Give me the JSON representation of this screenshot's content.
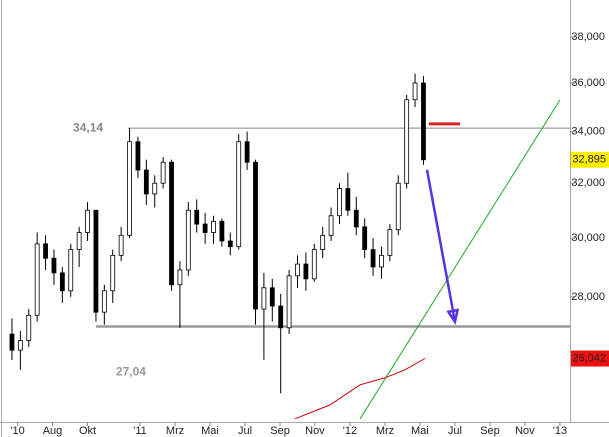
{
  "chart_data": {
    "type": "candlestick",
    "log_y": true,
    "xlim": [
      2010.333,
      2013.048
    ],
    "ylim": [
      24170,
      39690
    ],
    "yticks": [
      {
        "value": 28000,
        "label": "28,000"
      },
      {
        "value": 30000,
        "label": "30,000"
      },
      {
        "value": 32000,
        "label": "32,000"
      },
      {
        "value": 34000,
        "label": "34,000"
      },
      {
        "value": 36000,
        "label": "36,000"
      },
      {
        "value": 38000,
        "label": "38,000"
      }
    ],
    "xticks": [
      {
        "value": 2010.417,
        "label": "'10"
      },
      {
        "value": 2010.583,
        "label": "Aug"
      },
      {
        "value": 2010.75,
        "label": "Okt"
      },
      {
        "value": 2011.0,
        "label": "'11"
      },
      {
        "value": 2011.167,
        "label": "Mrz"
      },
      {
        "value": 2011.333,
        "label": "Mai"
      },
      {
        "value": 2011.5,
        "label": "Jul"
      },
      {
        "value": 2011.667,
        "label": "Sep"
      },
      {
        "value": 2011.833,
        "label": "Nov"
      },
      {
        "value": 2012.0,
        "label": "'12"
      },
      {
        "value": 2012.167,
        "label": "Mrz"
      },
      {
        "value": 2012.333,
        "label": "Mai"
      },
      {
        "value": 2012.5,
        "label": "Jul"
      },
      {
        "value": 2012.667,
        "label": "Sep"
      },
      {
        "value": 2012.833,
        "label": "Nov"
      },
      {
        "value": 2013.0,
        "label": "'13"
      }
    ],
    "up_color": "#ffffff",
    "down_color": "#000000",
    "x": [
      2010.39,
      2010.43,
      2010.47,
      2010.51,
      2010.55,
      2010.59,
      2010.63,
      2010.67,
      2010.71,
      2010.75,
      2010.79,
      2010.83,
      2010.87,
      2010.91,
      2010.95,
      2010.99,
      2011.03,
      2011.07,
      2011.11,
      2011.15,
      2011.19,
      2011.23,
      2011.27,
      2011.31,
      2011.35,
      2011.39,
      2011.43,
      2011.47,
      2011.51,
      2011.55,
      2011.59,
      2011.63,
      2011.67,
      2011.71,
      2011.75,
      2011.79,
      2011.83,
      2011.87,
      2011.91,
      2011.95,
      2011.99,
      2012.03,
      2012.07,
      2012.11,
      2012.15,
      2012.19,
      2012.23,
      2012.27,
      2012.31,
      2012.35
    ],
    "open": [
      26800,
      26300,
      26600,
      27400,
      29800,
      29300,
      28800,
      28200,
      29600,
      30200,
      31000,
      27500,
      28200,
      29400,
      30100,
      33600,
      32500,
      31600,
      32000,
      32800,
      28400,
      28900,
      31000,
      30500,
      30200,
      30600,
      29900,
      29700,
      33600,
      32800,
      27600,
      28300,
      27700,
      27000,
      28700,
      29100,
      28600,
      29600,
      30100,
      30800,
      31800,
      31000,
      30400,
      29600,
      29000,
      29400,
      30300,
      32000,
      35300,
      36000
    ],
    "high": [
      27300,
      26900,
      27600,
      30200,
      30100,
      29600,
      29000,
      29800,
      30400,
      31300,
      31000,
      28400,
      29600,
      30400,
      34140,
      33800,
      32900,
      32300,
      33000,
      32900,
      29200,
      31300,
      31400,
      30900,
      30800,
      30700,
      30200,
      33900,
      34000,
      32900,
      28800,
      28600,
      28100,
      28900,
      29400,
      29500,
      29800,
      30400,
      31100,
      32000,
      32400,
      31500,
      30700,
      30000,
      29700,
      30500,
      32300,
      35500,
      36400,
      36300
    ],
    "low": [
      26000,
      25700,
      26400,
      27200,
      28900,
      28400,
      27800,
      28000,
      29000,
      29900,
      27200,
      27100,
      27800,
      29200,
      30000,
      32200,
      31200,
      31100,
      31800,
      28200,
      27000,
      28700,
      30200,
      29800,
      29800,
      29700,
      29400,
      29600,
      32500,
      27100,
      26000,
      27200,
      25000,
      26800,
      28300,
      28200,
      28500,
      29300,
      29900,
      30500,
      30800,
      30100,
      29300,
      28700,
      28600,
      29200,
      30100,
      31800,
      35000,
      32700
    ],
    "close": [
      26300,
      26600,
      27400,
      29800,
      29300,
      28800,
      28200,
      29600,
      30200,
      31000,
      27500,
      28200,
      29400,
      30100,
      33600,
      32500,
      31600,
      32000,
      32800,
      28400,
      28900,
      31000,
      30500,
      30200,
      30600,
      29900,
      29700,
      33600,
      32800,
      27600,
      28300,
      27700,
      27000,
      28700,
      29100,
      28600,
      29600,
      30100,
      30800,
      31800,
      31000,
      30400,
      29600,
      29000,
      29400,
      30300,
      32000,
      35300,
      36000,
      32895
    ],
    "close_label": "32,895",
    "levels": [
      {
        "value": 34140,
        "label": "34,14",
        "x": 2010.943,
        "color": "#888888"
      },
      {
        "value": 27040,
        "label": "27,04",
        "x": 2010.79,
        "color": "#999999"
      }
    ],
    "moving_average": {
      "color": "#cc0000",
      "x": [
        2011.738,
        2011.905,
        2012.048,
        2012.167,
        2012.262,
        2012.357
      ],
      "values": [
        24260,
        24660,
        25250,
        25460,
        25700,
        26042
      ],
      "last_label": "26,042"
    },
    "trendline": {
      "color": "#22aa22",
      "x": [
        2012.048,
        2013.0
      ],
      "values": [
        24260,
        35290
      ]
    },
    "arrow": {
      "color": "#5a32e6",
      "x": [
        2012.367,
        2012.5
      ],
      "values": [
        32510,
        27190
      ]
    },
    "marker": {
      "color": "#dd2222",
      "x": [
        2012.376,
        2012.524
      ],
      "values": [
        34310,
        34310
      ]
    }
  }
}
